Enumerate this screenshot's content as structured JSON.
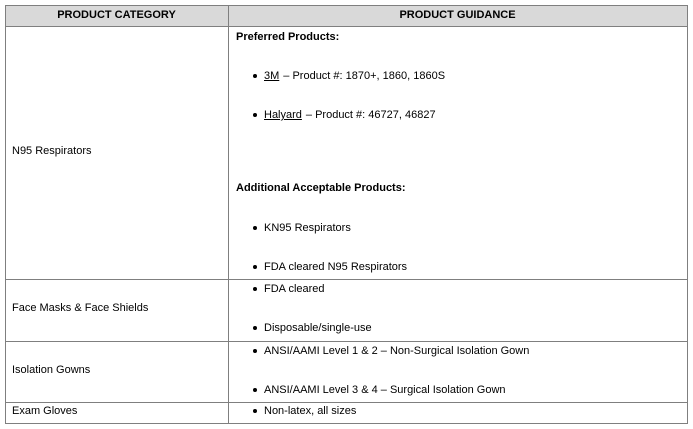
{
  "table": {
    "headers": [
      "PRODUCT CATEGORY",
      "PRODUCT GUIDANCE"
    ],
    "rows": [
      {
        "category": "N95 Respirators",
        "sections": [
          {
            "heading": "Preferred Products:",
            "items": [
              {
                "brand": "3M",
                "text": "– Product #: 1870+, 1860, 1860S"
              },
              {
                "brand": "Halyard",
                "text": "– Product #: 46727, 46827"
              }
            ]
          },
          {
            "heading": "Additional Acceptable Products:",
            "items": [
              {
                "text": "KN95 Respirators"
              },
              {
                "text": "FDA cleared N95 Respirators"
              }
            ]
          }
        ]
      },
      {
        "category": "Face Masks & Face Shields",
        "sections": [
          {
            "items": [
              {
                "text": "FDA cleared"
              },
              {
                "text": "Disposable/single-use"
              }
            ]
          }
        ]
      },
      {
        "category": "Isolation Gowns",
        "sections": [
          {
            "items": [
              {
                "text": "ANSI/AAMI Level 1 & 2 – Non-Surgical Isolation Gown"
              },
              {
                "text": "ANSI/AAMI Level 3 & 4 – Surgical Isolation Gown"
              }
            ]
          }
        ]
      },
      {
        "category": "Exam Gloves",
        "sections": [
          {
            "items": [
              {
                "text": "Non-latex, all sizes"
              }
            ]
          }
        ]
      }
    ]
  }
}
